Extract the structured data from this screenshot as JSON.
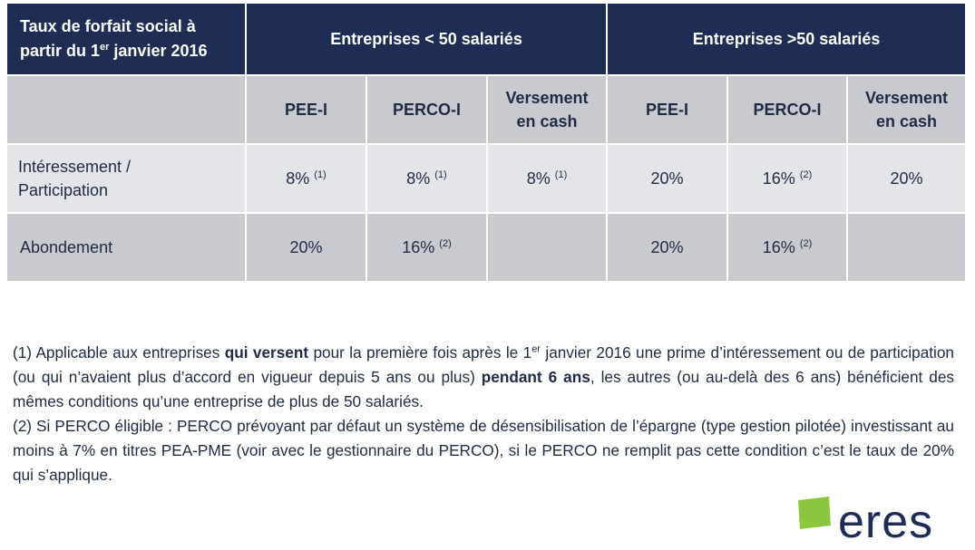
{
  "table": {
    "header": {
      "title_line1": "Taux de forfait social à",
      "title_line2_pre": "partir du 1",
      "title_line2_sup": "er",
      "title_line2_post": " janvier 2016",
      "group_small": "Entreprises < 50 salariés",
      "group_large": "Entreprises >50 salariés"
    },
    "subheaders": {
      "pee_small": "PEE-I",
      "perco_small": "PERCO-I",
      "cash_small_line1": "Versement",
      "cash_small_line2": "en cash",
      "pee_large": "PEE-I",
      "perco_large": "PERCO-I",
      "cash_large_line1": "Versement",
      "cash_large_line2": "en cash"
    },
    "rows": [
      {
        "label_line1": "Intéressement /",
        "label_line2": "Participation",
        "pee_small": "8%",
        "pee_small_note": "(1)",
        "perco_small": "8%",
        "perco_small_note": "(1)",
        "cash_small": "8%",
        "cash_small_note": "(1)",
        "pee_large": "20%",
        "perco_large": "16%",
        "perco_large_note": "(2)",
        "cash_large": "20%"
      },
      {
        "label": "Abondement",
        "pee_small": "20%",
        "perco_small": "16%",
        "perco_small_note": "(2)",
        "cash_small": "",
        "pee_large": "20%",
        "perco_large": "16%",
        "perco_large_note": "(2)",
        "cash_large": ""
      }
    ]
  },
  "footnotes": {
    "note1": {
      "t1": "(1) Applicable aux entreprises ",
      "b1": "qui versent",
      "t2": " pour la première fois après le 1",
      "sup": "er",
      "t3": " janvier 2016 une prime d’intéressement ou de participation (ou qui n’avaient plus d’accord en vigueur depuis 5 ans ou plus) ",
      "b2": "pendant 6 ans",
      "t4": ", les autres (ou au-delà des 6 ans) bénéficient des mêmes conditions qu’une entreprise de plus de 50 salariés."
    },
    "note2": "(2) Si PERCO éligible : PERCO prévoyant par défaut un système de désensibilisation de l’épargne (type gestion pilotée) investissant au moins à 7% en titres PEA-PME (voir avec le gestionnaire du PERCO), si le PERCO ne remplit pas cette condition c’est le taux de 20% qui s’applique."
  },
  "logo": {
    "text": "eres",
    "square_color": "#8cc63f",
    "text_color": "#1f2d55"
  },
  "colors": {
    "header_bg": "#1f2d55",
    "subheader_bg": "#c9cacf",
    "row_light_bg": "#e4e5e8",
    "row_dark_bg": "#c9cacf",
    "text": "#1f2a44"
  }
}
